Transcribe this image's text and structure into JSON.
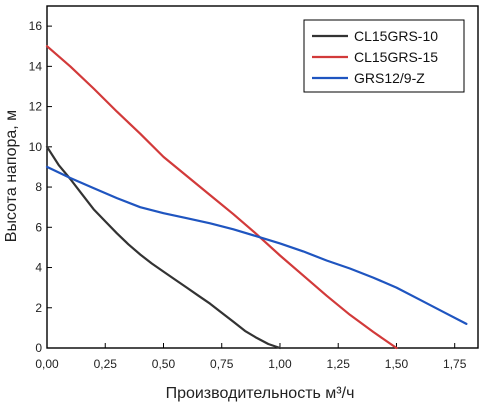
{
  "chart_data": {
    "type": "line",
    "title": "",
    "xlabel": "Производительность м³/ч",
    "ylabel": "Высота напора, м",
    "xlim": [
      0,
      1.85
    ],
    "ylim": [
      0,
      17
    ],
    "x_ticks": [
      0,
      0.25,
      0.5,
      0.75,
      1.0,
      1.25,
      1.5,
      1.75
    ],
    "x_tick_labels": [
      "0,00",
      "0,25",
      "0,50",
      "0,75",
      "1,00",
      "1,25",
      "1,50",
      "1,75"
    ],
    "y_ticks": [
      0,
      2,
      4,
      6,
      8,
      10,
      12,
      14,
      16
    ],
    "y_tick_labels": [
      "0",
      "2",
      "4",
      "6",
      "8",
      "10",
      "12",
      "14",
      "16"
    ],
    "grid": false,
    "legend_position": "top-right",
    "series": [
      {
        "name": "CL15GRS-10",
        "color": "#333333",
        "x": [
          0,
          0.05,
          0.1,
          0.15,
          0.2,
          0.25,
          0.3,
          0.35,
          0.4,
          0.45,
          0.5,
          0.55,
          0.6,
          0.65,
          0.7,
          0.75,
          0.8,
          0.85,
          0.9,
          0.95,
          1.0
        ],
        "y": [
          10.0,
          9.1,
          8.4,
          7.65,
          6.9,
          6.3,
          5.7,
          5.15,
          4.65,
          4.2,
          3.8,
          3.4,
          3.0,
          2.6,
          2.2,
          1.75,
          1.3,
          0.85,
          0.5,
          0.2,
          0.0
        ]
      },
      {
        "name": "CL15GRS-15",
        "color": "#d23a3a",
        "x": [
          0,
          0.1,
          0.2,
          0.3,
          0.4,
          0.5,
          0.6,
          0.7,
          0.8,
          0.9,
          1.0,
          1.1,
          1.2,
          1.3,
          1.4,
          1.5
        ],
        "y": [
          15.0,
          14.0,
          12.9,
          11.75,
          10.65,
          9.5,
          8.55,
          7.6,
          6.65,
          5.65,
          4.6,
          3.6,
          2.6,
          1.65,
          0.8,
          0.0
        ]
      },
      {
        "name": "GRS12/9-Z",
        "color": "#1f55c0",
        "x": [
          0,
          0.1,
          0.2,
          0.3,
          0.4,
          0.5,
          0.6,
          0.7,
          0.8,
          0.9,
          1.0,
          1.1,
          1.2,
          1.3,
          1.4,
          1.5,
          1.6,
          1.7,
          1.8
        ],
        "y": [
          9.0,
          8.45,
          7.95,
          7.45,
          7.0,
          6.7,
          6.45,
          6.2,
          5.9,
          5.55,
          5.2,
          4.8,
          4.35,
          3.95,
          3.5,
          3.0,
          2.4,
          1.8,
          1.2
        ]
      }
    ]
  }
}
